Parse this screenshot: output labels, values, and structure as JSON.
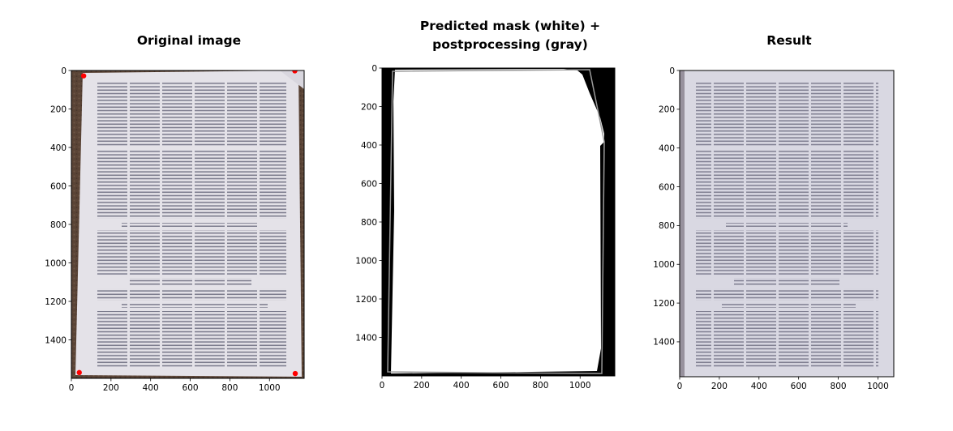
{
  "panels": [
    {
      "title": "Original image",
      "xticks": [
        "0",
        "200",
        "400",
        "600",
        "800",
        "1000"
      ],
      "yticks": [
        "0",
        "200",
        "400",
        "600",
        "800",
        "1000",
        "1200",
        "1400"
      ],
      "corner_markers": [
        {
          "x": 62,
          "y": 28
        },
        {
          "x": 1128,
          "y": 2
        },
        {
          "x": 40,
          "y": 1570
        },
        {
          "x": 1130,
          "y": 1575
        }
      ]
    },
    {
      "title_lines": [
        "Predicted mask (white) +",
        "postprocessing (gray)"
      ],
      "xticks": [
        "0",
        "200",
        "400",
        "600",
        "800",
        "1000"
      ],
      "yticks": [
        "0",
        "200",
        "400",
        "600",
        "800",
        "1000",
        "1200",
        "1400"
      ]
    },
    {
      "title": "Result",
      "xticks": [
        "0",
        "200",
        "400",
        "600",
        "800",
        "1000"
      ],
      "yticks": [
        "0",
        "200",
        "400",
        "600",
        "800",
        "1000",
        "1200",
        "1400"
      ]
    }
  ],
  "colors": {
    "background_brown": "#5a4436",
    "paper": "#e4e2e8",
    "text_lines": "#5a5a70",
    "marker_red": "#ff0000",
    "mask_white": "#ffffff",
    "mask_black": "#000000",
    "postproc_gray": "#9a9a9a",
    "result_paper": "#d9d8e2"
  }
}
